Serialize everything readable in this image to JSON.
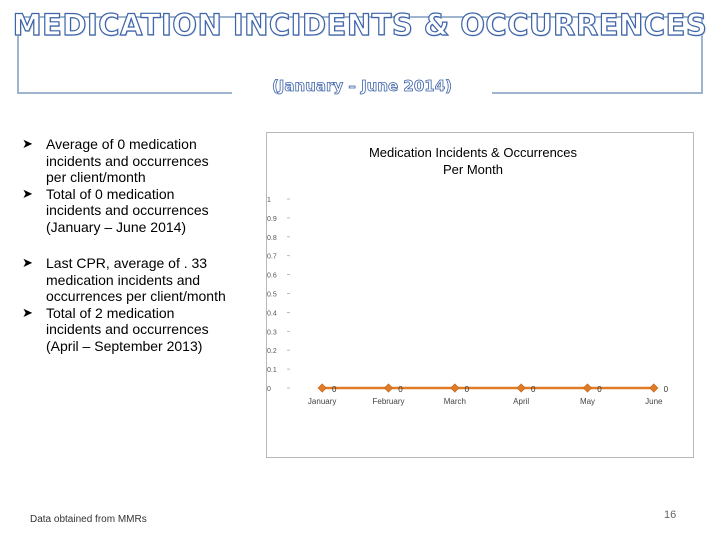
{
  "slide": {
    "title": "MEDICATION INCIDENTS & OCCURRENCES",
    "subtitle": "(January – June 2014)",
    "page_number": "16",
    "source_note": "Data obtained from MMRs"
  },
  "bullets": [
    {
      "text": "Average of 0 medication incidents and occurrences per client/month"
    },
    {
      "text": "Total of 0 medication incidents and occurrences (January – June 2014)"
    },
    {
      "text": "Last CPR, average of . 33 medication incidents and occurrences per client/month"
    },
    {
      "text": "Total of 2 medication incidents and occurrences (April – September 2013)"
    }
  ],
  "chart_data": {
    "type": "line",
    "title": "Medication Incidents & Occurrences Per Month",
    "title_lines": [
      "Medication Incidents & Occurrences",
      "Per Month"
    ],
    "categories": [
      "January",
      "February",
      "March",
      "April",
      "May",
      "June"
    ],
    "series": [
      {
        "name": "Medication Incidents & Occurrences",
        "values": [
          0,
          0,
          0,
          0,
          0,
          0
        ],
        "color": "#e07b28"
      }
    ],
    "data_labels": [
      "0",
      "0",
      "0",
      "0",
      "0",
      "0"
    ],
    "ylim": [
      0,
      1
    ],
    "yticks": [
      0,
      0.1,
      0.2,
      0.3,
      0.4,
      0.5,
      0.6,
      0.7,
      0.8,
      0.9,
      1
    ],
    "ytick_labels": [
      "0",
      "0.1",
      "0.2",
      "0.3",
      "0.4",
      "0.5",
      "0.6",
      "0.7",
      "0.8",
      "0.9",
      "1"
    ],
    "xlabel": "",
    "ylabel": "",
    "grid": false,
    "legend": "none",
    "line_color": "#e07b28",
    "marker_color": "#e07b28"
  }
}
